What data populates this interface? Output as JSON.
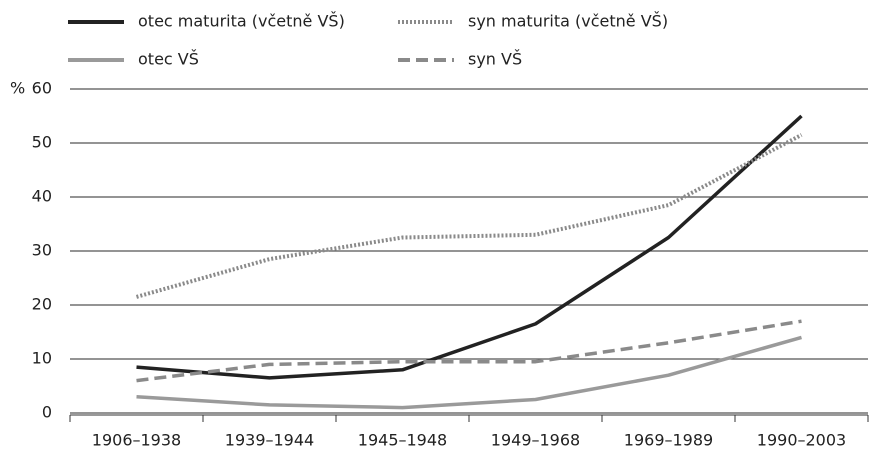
{
  "chart_data": {
    "type": "line",
    "ylabel": "%",
    "categories": [
      "1906–1938",
      "1939–1944",
      "1945–1948",
      "1949–1968",
      "1969–1989",
      "1990–2003"
    ],
    "series": [
      {
        "name": "otec maturita (včetně VŠ)",
        "color": "#222222",
        "style": "solid",
        "values": [
          8.5,
          6.5,
          8,
          16.5,
          32.5,
          55
        ]
      },
      {
        "name": "syn maturita (včetně VŠ)",
        "color": "#8a8a8a",
        "style": "dotted",
        "values": [
          21.5,
          28.5,
          32.5,
          33,
          38.5,
          51.5
        ]
      },
      {
        "name": "otec VŠ",
        "color": "#9a9a9a",
        "style": "solid",
        "values": [
          3,
          1.5,
          1,
          2.5,
          7,
          14
        ]
      },
      {
        "name": "syn VŠ",
        "color": "#8a8a8a",
        "style": "dashed",
        "values": [
          6,
          9,
          9.5,
          9.5,
          13,
          17
        ]
      }
    ],
    "ylim": [
      0,
      60
    ],
    "yticks": [
      0,
      10,
      20,
      30,
      40,
      50,
      60
    ],
    "grid": true
  }
}
